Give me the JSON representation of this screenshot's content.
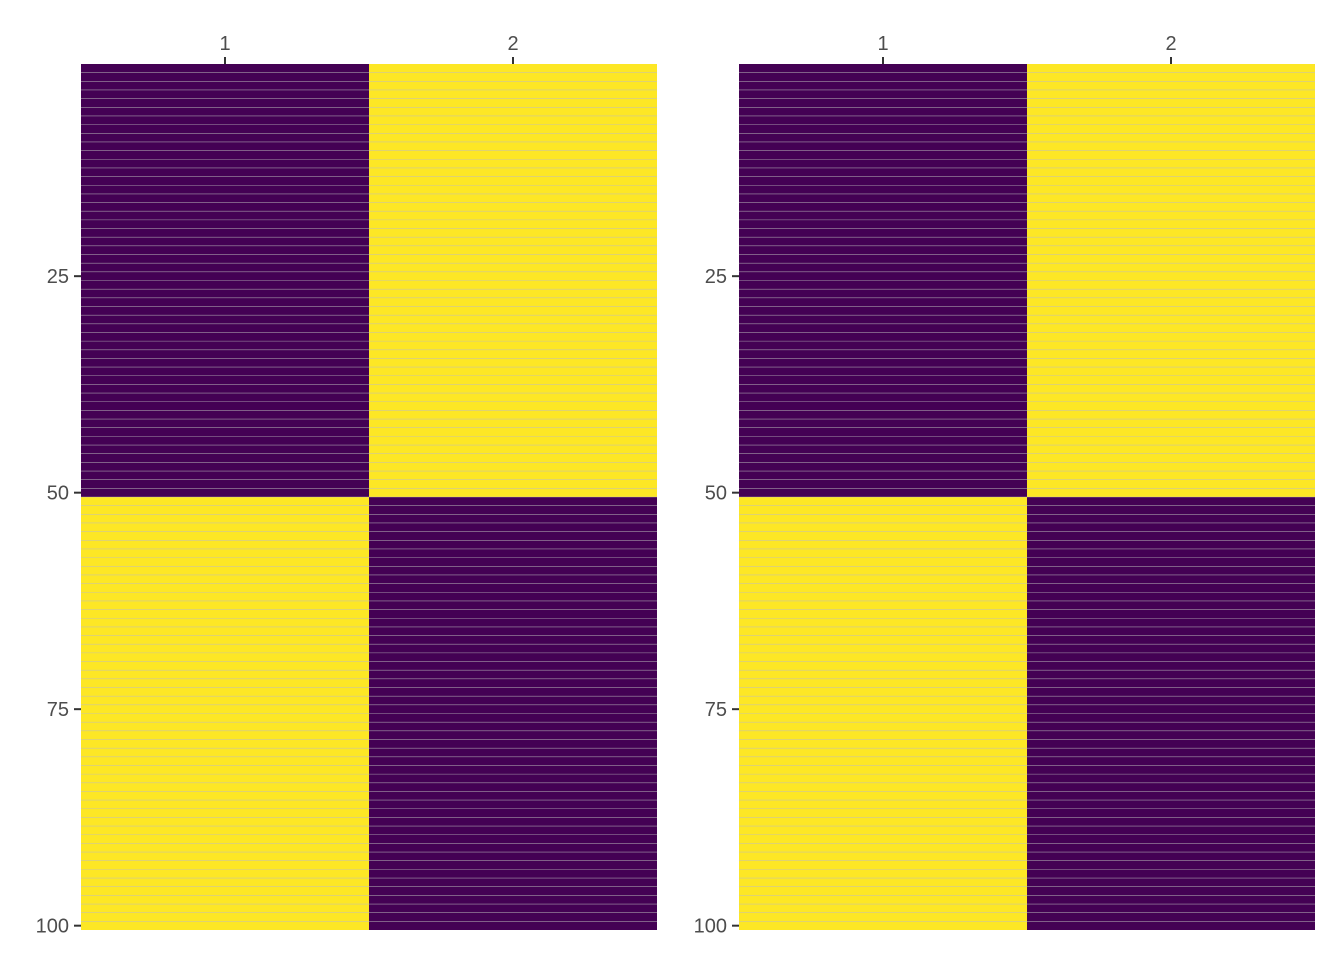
{
  "chart_data": [
    {
      "type": "heatmap",
      "title": "",
      "xlabel": "",
      "ylabel": "",
      "x_categories": [
        "1",
        "2"
      ],
      "y_range": [
        1,
        100
      ],
      "y_ticks": [
        25,
        50,
        75,
        100
      ],
      "x_tick_position": "top",
      "legend": "none",
      "colors": {
        "low": "#440154",
        "high": "#FDE725",
        "row_separator": "#bebebe"
      },
      "cells": [
        {
          "x": "1",
          "rows": [
            1,
            50
          ],
          "level": "low"
        },
        {
          "x": "2",
          "rows": [
            1,
            50
          ],
          "level": "high"
        },
        {
          "x": "1",
          "rows": [
            51,
            100
          ],
          "level": "high"
        },
        {
          "x": "2",
          "rows": [
            51,
            100
          ],
          "level": "low"
        }
      ]
    },
    {
      "type": "heatmap",
      "title": "",
      "xlabel": "",
      "ylabel": "",
      "x_categories": [
        "1",
        "2"
      ],
      "y_range": [
        1,
        100
      ],
      "y_ticks": [
        25,
        50,
        75,
        100
      ],
      "x_tick_position": "top",
      "legend": "none",
      "colors": {
        "low": "#440154",
        "high": "#FDE725",
        "row_separator": "#bebebe"
      },
      "cells": [
        {
          "x": "1",
          "rows": [
            1,
            50
          ],
          "level": "low"
        },
        {
          "x": "2",
          "rows": [
            1,
            50
          ],
          "level": "high"
        },
        {
          "x": "1",
          "rows": [
            51,
            100
          ],
          "level": "high"
        },
        {
          "x": "2",
          "rows": [
            51,
            100
          ],
          "level": "low"
        }
      ]
    }
  ]
}
